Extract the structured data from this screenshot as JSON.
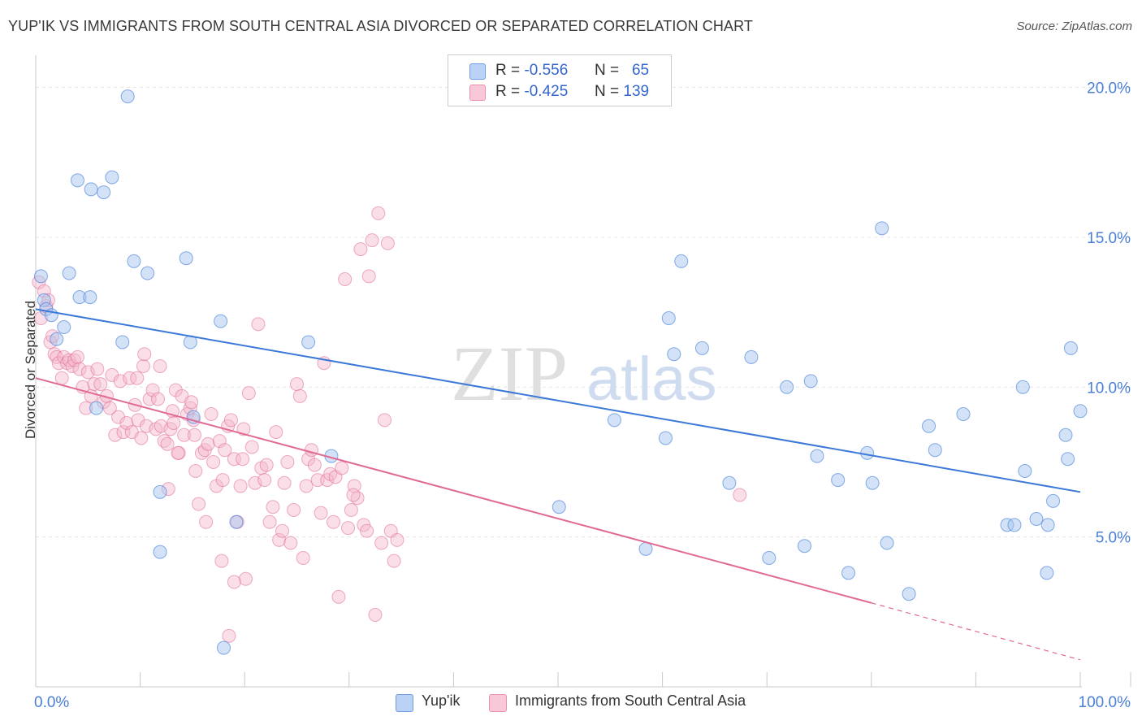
{
  "title": "YUP'IK VS IMMIGRANTS FROM SOUTH CENTRAL ASIA DIVORCED OR SEPARATED CORRELATION CHART",
  "source": "Source: ZipAtlas.com",
  "watermark": {
    "zip": "ZIP",
    "atlas": "atlas"
  },
  "legend": {
    "rows": [
      {
        "r_label": "R =",
        "r_value": "-0.556",
        "n_label": "N =",
        "n_value": "65",
        "color": "#a8c6f0"
      },
      {
        "r_label": "R =",
        "r_value": "-0.425",
        "n_label": "N =",
        "n_value": "139",
        "color": "#f5b8cb"
      }
    ]
  },
  "bottom_legend": [
    "Yup'ik",
    "Immigrants from South Central Asia"
  ],
  "chart_data": {
    "type": "scatter",
    "title": "YUP'IK VS IMMIGRANTS FROM SOUTH CENTRAL ASIA DIVORCED OR SEPARATED CORRELATION CHART",
    "xlabel": "",
    "ylabel": "Divorced or Separated",
    "xlim": [
      0,
      100
    ],
    "ylim": [
      0,
      20.8
    ],
    "x_tick_labels": [
      "0.0%",
      "100.0%"
    ],
    "y_ticks": [
      5,
      10,
      15,
      20
    ],
    "y_tick_labels": [
      "5.0%",
      "10.0%",
      "15.0%",
      "20.0%"
    ],
    "grid": "horizontal dashed",
    "colors": {
      "yupik": "#3b78d8",
      "yupik_fill": "#a8c6f0",
      "sca": "#e06a95",
      "sca_fill": "#f5b8cb"
    },
    "series": [
      {
        "name": "Yup'ik",
        "trend": {
          "x": [
            0,
            100
          ],
          "y": [
            12.6,
            6.5
          ]
        },
        "points": [
          [
            0.5,
            13.7
          ],
          [
            0.8,
            12.9
          ],
          [
            1.0,
            12.6
          ],
          [
            1.5,
            12.4
          ],
          [
            2.0,
            11.6
          ],
          [
            2.7,
            12.0
          ],
          [
            3.2,
            13.8
          ],
          [
            4.0,
            16.9
          ],
          [
            4.2,
            13.0
          ],
          [
            5.2,
            13.0
          ],
          [
            5.3,
            16.6
          ],
          [
            5.8,
            9.3
          ],
          [
            6.5,
            16.5
          ],
          [
            7.3,
            17.0
          ],
          [
            8.3,
            11.5
          ],
          [
            8.8,
            19.7
          ],
          [
            9.4,
            14.2
          ],
          [
            10.7,
            13.8
          ],
          [
            11.9,
            4.5
          ],
          [
            11.9,
            6.5
          ],
          [
            14.4,
            14.3
          ],
          [
            14.8,
            11.5
          ],
          [
            15.1,
            9.0
          ],
          [
            17.7,
            12.2
          ],
          [
            18.0,
            1.3
          ],
          [
            19.2,
            5.5
          ],
          [
            26.1,
            11.5
          ],
          [
            28.3,
            7.7
          ],
          [
            50.1,
            6.0
          ],
          [
            55.4,
            8.9
          ],
          [
            58.4,
            4.6
          ],
          [
            60.3,
            8.3
          ],
          [
            60.6,
            12.3
          ],
          [
            61.1,
            11.1
          ],
          [
            61.8,
            14.2
          ],
          [
            63.8,
            11.3
          ],
          [
            66.4,
            6.8
          ],
          [
            68.5,
            11.0
          ],
          [
            70.2,
            4.3
          ],
          [
            71.9,
            10.0
          ],
          [
            73.6,
            4.7
          ],
          [
            74.2,
            10.2
          ],
          [
            74.8,
            7.7
          ],
          [
            76.8,
            6.9
          ],
          [
            77.8,
            3.8
          ],
          [
            79.6,
            7.8
          ],
          [
            80.1,
            6.8
          ],
          [
            81.0,
            15.3
          ],
          [
            81.5,
            4.8
          ],
          [
            83.6,
            3.1
          ],
          [
            85.5,
            8.7
          ],
          [
            86.1,
            7.9
          ],
          [
            88.8,
            9.1
          ],
          [
            93.0,
            5.4
          ],
          [
            93.7,
            5.4
          ],
          [
            94.5,
            10.0
          ],
          [
            94.7,
            7.2
          ],
          [
            95.8,
            5.6
          ],
          [
            96.8,
            3.8
          ],
          [
            96.9,
            5.4
          ],
          [
            97.4,
            6.2
          ],
          [
            98.6,
            8.4
          ],
          [
            98.8,
            7.6
          ],
          [
            99.1,
            11.3
          ],
          [
            100.0,
            9.2
          ]
        ]
      },
      {
        "name": "Immigrants from South Central Asia",
        "trend": {
          "x": [
            0,
            80,
            100
          ],
          "y": [
            10.3,
            2.8,
            0.9
          ]
        },
        "points": [
          [
            0.3,
            13.5
          ],
          [
            0.5,
            12.3
          ],
          [
            0.8,
            13.2
          ],
          [
            1.0,
            12.7
          ],
          [
            1.2,
            12.9
          ],
          [
            1.4,
            11.5
          ],
          [
            1.6,
            11.7
          ],
          [
            1.8,
            11.1
          ],
          [
            2.0,
            11.0
          ],
          [
            2.2,
            10.8
          ],
          [
            2.5,
            10.3
          ],
          [
            2.7,
            11.0
          ],
          [
            3.0,
            10.8
          ],
          [
            3.2,
            10.9
          ],
          [
            3.5,
            10.7
          ],
          [
            3.7,
            10.9
          ],
          [
            4.0,
            11.0
          ],
          [
            4.2,
            10.6
          ],
          [
            4.5,
            10.0
          ],
          [
            4.8,
            9.3
          ],
          [
            5.0,
            10.5
          ],
          [
            5.3,
            9.7
          ],
          [
            5.6,
            10.1
          ],
          [
            5.9,
            10.6
          ],
          [
            6.2,
            10.1
          ],
          [
            6.5,
            9.5
          ],
          [
            6.8,
            9.7
          ],
          [
            7.1,
            9.3
          ],
          [
            7.3,
            10.4
          ],
          [
            7.6,
            8.4
          ],
          [
            7.9,
            9.0
          ],
          [
            8.1,
            10.2
          ],
          [
            8.4,
            8.5
          ],
          [
            8.7,
            8.8
          ],
          [
            9.0,
            10.3
          ],
          [
            9.2,
            8.5
          ],
          [
            9.5,
            9.4
          ],
          [
            9.8,
            8.9
          ],
          [
            10.1,
            8.3
          ],
          [
            10.3,
            10.7
          ],
          [
            10.6,
            8.7
          ],
          [
            10.9,
            9.6
          ],
          [
            11.2,
            9.9
          ],
          [
            11.5,
            8.6
          ],
          [
            11.7,
            9.6
          ],
          [
            12.0,
            8.7
          ],
          [
            12.3,
            8.2
          ],
          [
            12.6,
            8.1
          ],
          [
            12.9,
            8.6
          ],
          [
            13.1,
            9.2
          ],
          [
            13.4,
            9.9
          ],
          [
            13.7,
            7.8
          ],
          [
            14.0,
            9.7
          ],
          [
            14.2,
            8.4
          ],
          [
            14.5,
            9.1
          ],
          [
            14.8,
            9.3
          ],
          [
            15.1,
            8.9
          ],
          [
            15.3,
            7.2
          ],
          [
            15.6,
            6.1
          ],
          [
            15.9,
            7.8
          ],
          [
            16.2,
            7.9
          ],
          [
            16.5,
            8.1
          ],
          [
            16.8,
            9.1
          ],
          [
            17.0,
            7.5
          ],
          [
            17.3,
            6.7
          ],
          [
            17.6,
            8.2
          ],
          [
            17.9,
            6.9
          ],
          [
            18.1,
            7.9
          ],
          [
            18.4,
            8.7
          ],
          [
            18.7,
            8.9
          ],
          [
            19.0,
            7.6
          ],
          [
            19.3,
            5.5
          ],
          [
            19.6,
            6.7
          ],
          [
            19.8,
            7.6
          ],
          [
            20.1,
            3.6
          ],
          [
            20.4,
            9.8
          ],
          [
            20.7,
            8.0
          ],
          [
            21.0,
            6.8
          ],
          [
            21.3,
            12.1
          ],
          [
            21.6,
            7.3
          ],
          [
            21.9,
            6.9
          ],
          [
            22.1,
            7.4
          ],
          [
            22.4,
            5.5
          ],
          [
            22.7,
            6.0
          ],
          [
            23.0,
            8.5
          ],
          [
            23.3,
            4.9
          ],
          [
            23.6,
            5.2
          ],
          [
            23.8,
            6.8
          ],
          [
            24.1,
            7.5
          ],
          [
            24.4,
            4.8
          ],
          [
            24.7,
            5.9
          ],
          [
            25.0,
            10.1
          ],
          [
            25.3,
            9.7
          ],
          [
            25.6,
            4.3
          ],
          [
            25.9,
            6.7
          ],
          [
            26.1,
            7.6
          ],
          [
            26.4,
            7.9
          ],
          [
            26.7,
            7.4
          ],
          [
            27.0,
            6.9
          ],
          [
            27.3,
            5.8
          ],
          [
            27.6,
            10.8
          ],
          [
            27.9,
            6.9
          ],
          [
            28.2,
            7.1
          ],
          [
            28.5,
            5.5
          ],
          [
            28.7,
            7.0
          ],
          [
            29.0,
            3.0
          ],
          [
            29.3,
            7.3
          ],
          [
            29.6,
            13.6
          ],
          [
            29.9,
            5.3
          ],
          [
            30.2,
            5.9
          ],
          [
            30.5,
            6.7
          ],
          [
            30.8,
            6.3
          ],
          [
            31.1,
            14.6
          ],
          [
            31.4,
            5.4
          ],
          [
            31.7,
            5.2
          ],
          [
            31.9,
            13.7
          ],
          [
            32.2,
            14.9
          ],
          [
            32.5,
            2.4
          ],
          [
            32.8,
            15.8
          ],
          [
            33.1,
            4.8
          ],
          [
            33.4,
            8.9
          ],
          [
            33.7,
            14.8
          ],
          [
            34.0,
            5.2
          ],
          [
            34.3,
            4.2
          ],
          [
            34.6,
            4.9
          ],
          [
            16.3,
            5.5
          ],
          [
            17.8,
            4.2
          ],
          [
            18.5,
            1.7
          ],
          [
            19.0,
            3.5
          ],
          [
            12.7,
            6.6
          ],
          [
            13.2,
            8.8
          ],
          [
            14.9,
            9.5
          ],
          [
            10.4,
            11.1
          ],
          [
            9.7,
            10.3
          ],
          [
            11.9,
            10.7
          ],
          [
            15.2,
            8.4
          ],
          [
            13.6,
            7.8
          ],
          [
            19.9,
            8.6
          ],
          [
            30.4,
            6.4
          ],
          [
            67.4,
            6.4
          ]
        ]
      }
    ]
  }
}
